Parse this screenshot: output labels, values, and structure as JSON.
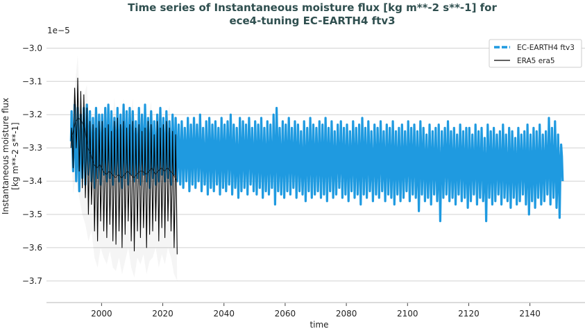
{
  "chart_data": {
    "type": "line",
    "title_line1": "Time series of Instantaneous moisture flux [kg m**-2 s**-1] for",
    "title_line2": "ece4-tuning EC-EARTH4 ftv3",
    "xlabel": "time",
    "ylabel_line1": "Instantaneous moisture flux",
    "ylabel_line2": "[kg m**-2 s**-1]",
    "y_offset_label": "1e−5",
    "xlim": [
      1982,
      2158
    ],
    "ylim": [
      -3.765,
      -2.97
    ],
    "x_ticks": [
      2000,
      2020,
      2040,
      2060,
      2080,
      2100,
      2120,
      2140
    ],
    "y_ticks": [
      -3.0,
      -3.1,
      -3.2,
      -3.3,
      -3.4,
      -3.5,
      -3.6,
      -3.7
    ],
    "y_tick_labels": [
      "−3.0",
      "−3.1",
      "−3.2",
      "−3.3",
      "−3.4",
      "−3.5",
      "−3.6",
      "−3.7"
    ],
    "x_tick_labels": [
      "2000",
      "2020",
      "2040",
      "2060",
      "2080",
      "2100",
      "2120",
      "2140"
    ],
    "grid": "horizontal",
    "legend_position": "top-right",
    "series": [
      {
        "name": "EC-EARTH4 ftv3",
        "color": "#1f9ae0",
        "style": "dashed",
        "start_year": 1990,
        "annual_max": [
          -3.19,
          -3.17,
          -3.18,
          -3.2,
          -3.18,
          -3.17,
          -3.19,
          -3.21,
          -3.18,
          -3.2,
          -3.2,
          -3.18,
          -3.17,
          -3.19,
          -3.21,
          -3.18,
          -3.2,
          -3.17,
          -3.19,
          -3.18,
          -3.19,
          -3.22,
          -3.18,
          -3.2,
          -3.17,
          -3.21,
          -3.19,
          -3.22,
          -3.2,
          -3.18,
          -3.21,
          -3.19,
          -3.22,
          -3.2,
          -3.21,
          -3.23,
          -3.22,
          -3.24,
          -3.21,
          -3.23,
          -3.21,
          -3.23,
          -3.2,
          -3.24,
          -3.22,
          -3.21,
          -3.23,
          -3.22,
          -3.24,
          -3.21,
          -3.23,
          -3.22,
          -3.2,
          -3.23,
          -3.24,
          -3.21,
          -3.22,
          -3.23,
          -3.21,
          -3.24,
          -3.22,
          -3.23,
          -3.21,
          -3.24,
          -3.22,
          -3.23,
          -3.2,
          -3.18,
          -3.24,
          -3.22,
          -3.23,
          -3.21,
          -3.24,
          -3.22,
          -3.23,
          -3.25,
          -3.22,
          -3.24,
          -3.21,
          -3.23,
          -3.24,
          -3.22,
          -3.23,
          -3.21,
          -3.24,
          -3.22,
          -3.25,
          -3.23,
          -3.22,
          -3.24,
          -3.23,
          -3.25,
          -3.22,
          -3.24,
          -3.23,
          -3.21,
          -3.24,
          -3.22,
          -3.25,
          -3.23,
          -3.24,
          -3.22,
          -3.25,
          -3.23,
          -3.24,
          -3.22,
          -3.25,
          -3.24,
          -3.23,
          -3.25,
          -3.22,
          -3.24,
          -3.23,
          -3.25,
          -3.22,
          -3.24,
          -3.26,
          -3.23,
          -3.25,
          -3.24,
          -3.23,
          -3.25,
          -3.24,
          -3.22,
          -3.25,
          -3.24,
          -3.26,
          -3.23,
          -3.25,
          -3.24,
          -3.24,
          -3.26,
          -3.23,
          -3.25,
          -3.24,
          -3.27,
          -3.23,
          -3.25,
          -3.24,
          -3.26,
          -3.25,
          -3.23,
          -3.26,
          -3.24,
          -3.25,
          -3.27,
          -3.24,
          -3.26,
          -3.25,
          -3.23,
          -3.26,
          -3.24,
          -3.25,
          -3.23,
          -3.26,
          -3.25,
          -3.21,
          -3.24,
          -3.22,
          -3.26,
          -3.29
        ],
        "annual_min": [
          -3.37,
          -3.4,
          -3.43,
          -3.39,
          -3.41,
          -3.38,
          -3.4,
          -3.42,
          -3.39,
          -3.41,
          -3.38,
          -3.4,
          -3.39,
          -3.41,
          -3.38,
          -3.4,
          -3.42,
          -3.39,
          -3.41,
          -3.38,
          -3.4,
          -3.39,
          -3.41,
          -3.38,
          -3.4,
          -3.42,
          -3.39,
          -3.41,
          -3.4,
          -3.38,
          -3.4,
          -3.39,
          -3.41,
          -3.38,
          -3.4,
          -3.41,
          -3.42,
          -3.4,
          -3.43,
          -3.41,
          -3.42,
          -3.4,
          -3.43,
          -3.41,
          -3.44,
          -3.42,
          -3.43,
          -3.41,
          -3.44,
          -3.42,
          -3.43,
          -3.41,
          -3.44,
          -3.42,
          -3.45,
          -3.43,
          -3.42,
          -3.44,
          -3.41,
          -3.43,
          -3.44,
          -3.42,
          -3.45,
          -3.43,
          -3.44,
          -3.42,
          -3.47,
          -3.43,
          -3.44,
          -3.45,
          -3.43,
          -3.44,
          -3.42,
          -3.45,
          -3.43,
          -3.44,
          -3.46,
          -3.43,
          -3.45,
          -3.44,
          -3.43,
          -3.45,
          -3.44,
          -3.46,
          -3.43,
          -3.45,
          -3.44,
          -3.42,
          -3.45,
          -3.44,
          -3.46,
          -3.43,
          -3.45,
          -3.44,
          -3.47,
          -3.44,
          -3.45,
          -3.43,
          -3.46,
          -3.44,
          -3.45,
          -3.43,
          -3.46,
          -3.44,
          -3.45,
          -3.47,
          -3.44,
          -3.46,
          -3.45,
          -3.43,
          -3.46,
          -3.44,
          -3.45,
          -3.49,
          -3.44,
          -3.46,
          -3.45,
          -3.47,
          -3.44,
          -3.46,
          -3.52,
          -3.45,
          -3.44,
          -3.46,
          -3.45,
          -3.47,
          -3.44,
          -3.46,
          -3.45,
          -3.48,
          -3.46,
          -3.44,
          -3.47,
          -3.45,
          -3.46,
          -3.52,
          -3.45,
          -3.47,
          -3.46,
          -3.44,
          -3.47,
          -3.45,
          -3.46,
          -3.48,
          -3.45,
          -3.47,
          -3.46,
          -3.44,
          -3.47,
          -3.5,
          -3.46,
          -3.48,
          -3.45,
          -3.47,
          -3.46,
          -3.44,
          -3.47,
          -3.45,
          -3.48,
          -3.51,
          -3.4
        ]
      },
      {
        "name": "ERA5 era5",
        "color": "#000000",
        "style": "solid",
        "start_year": 1990,
        "annual_max": [
          -3.24,
          -3.12,
          -3.09,
          -3.13,
          -3.14,
          -3.18,
          -3.22,
          -3.23,
          -3.24,
          -3.22,
          -3.22,
          -3.24,
          -3.23,
          -3.25,
          -3.22,
          -3.21,
          -3.23,
          -3.22,
          -3.24,
          -3.23,
          -3.22,
          -3.24,
          -3.23,
          -3.25,
          -3.24,
          -3.22,
          -3.23,
          -3.26,
          -3.22,
          -3.24,
          -3.23,
          -3.22,
          -3.24,
          -3.25,
          -3.26
        ],
        "annual_min": [
          -3.36,
          -3.3,
          -3.37,
          -3.42,
          -3.45,
          -3.5,
          -3.47,
          -3.55,
          -3.58,
          -3.52,
          -3.55,
          -3.57,
          -3.53,
          -3.58,
          -3.59,
          -3.55,
          -3.6,
          -3.56,
          -3.52,
          -3.58,
          -3.61,
          -3.55,
          -3.57,
          -3.54,
          -3.6,
          -3.56,
          -3.55,
          -3.52,
          -3.58,
          -3.54,
          -3.57,
          -3.52,
          -3.55,
          -3.6,
          -3.62
        ],
        "annual_mean": [
          -3.26,
          -3.22,
          -3.21,
          -3.22,
          -3.24,
          -3.3,
          -3.32,
          -3.35,
          -3.36,
          -3.35,
          -3.37,
          -3.38,
          -3.37,
          -3.38,
          -3.39,
          -3.38,
          -3.39,
          -3.38,
          -3.37,
          -3.38,
          -3.39,
          -3.38,
          -3.37,
          -3.37,
          -3.38,
          -3.37,
          -3.36,
          -3.38,
          -3.37,
          -3.36,
          -3.37,
          -3.36,
          -3.37,
          -3.38,
          -3.4
        ]
      }
    ]
  }
}
